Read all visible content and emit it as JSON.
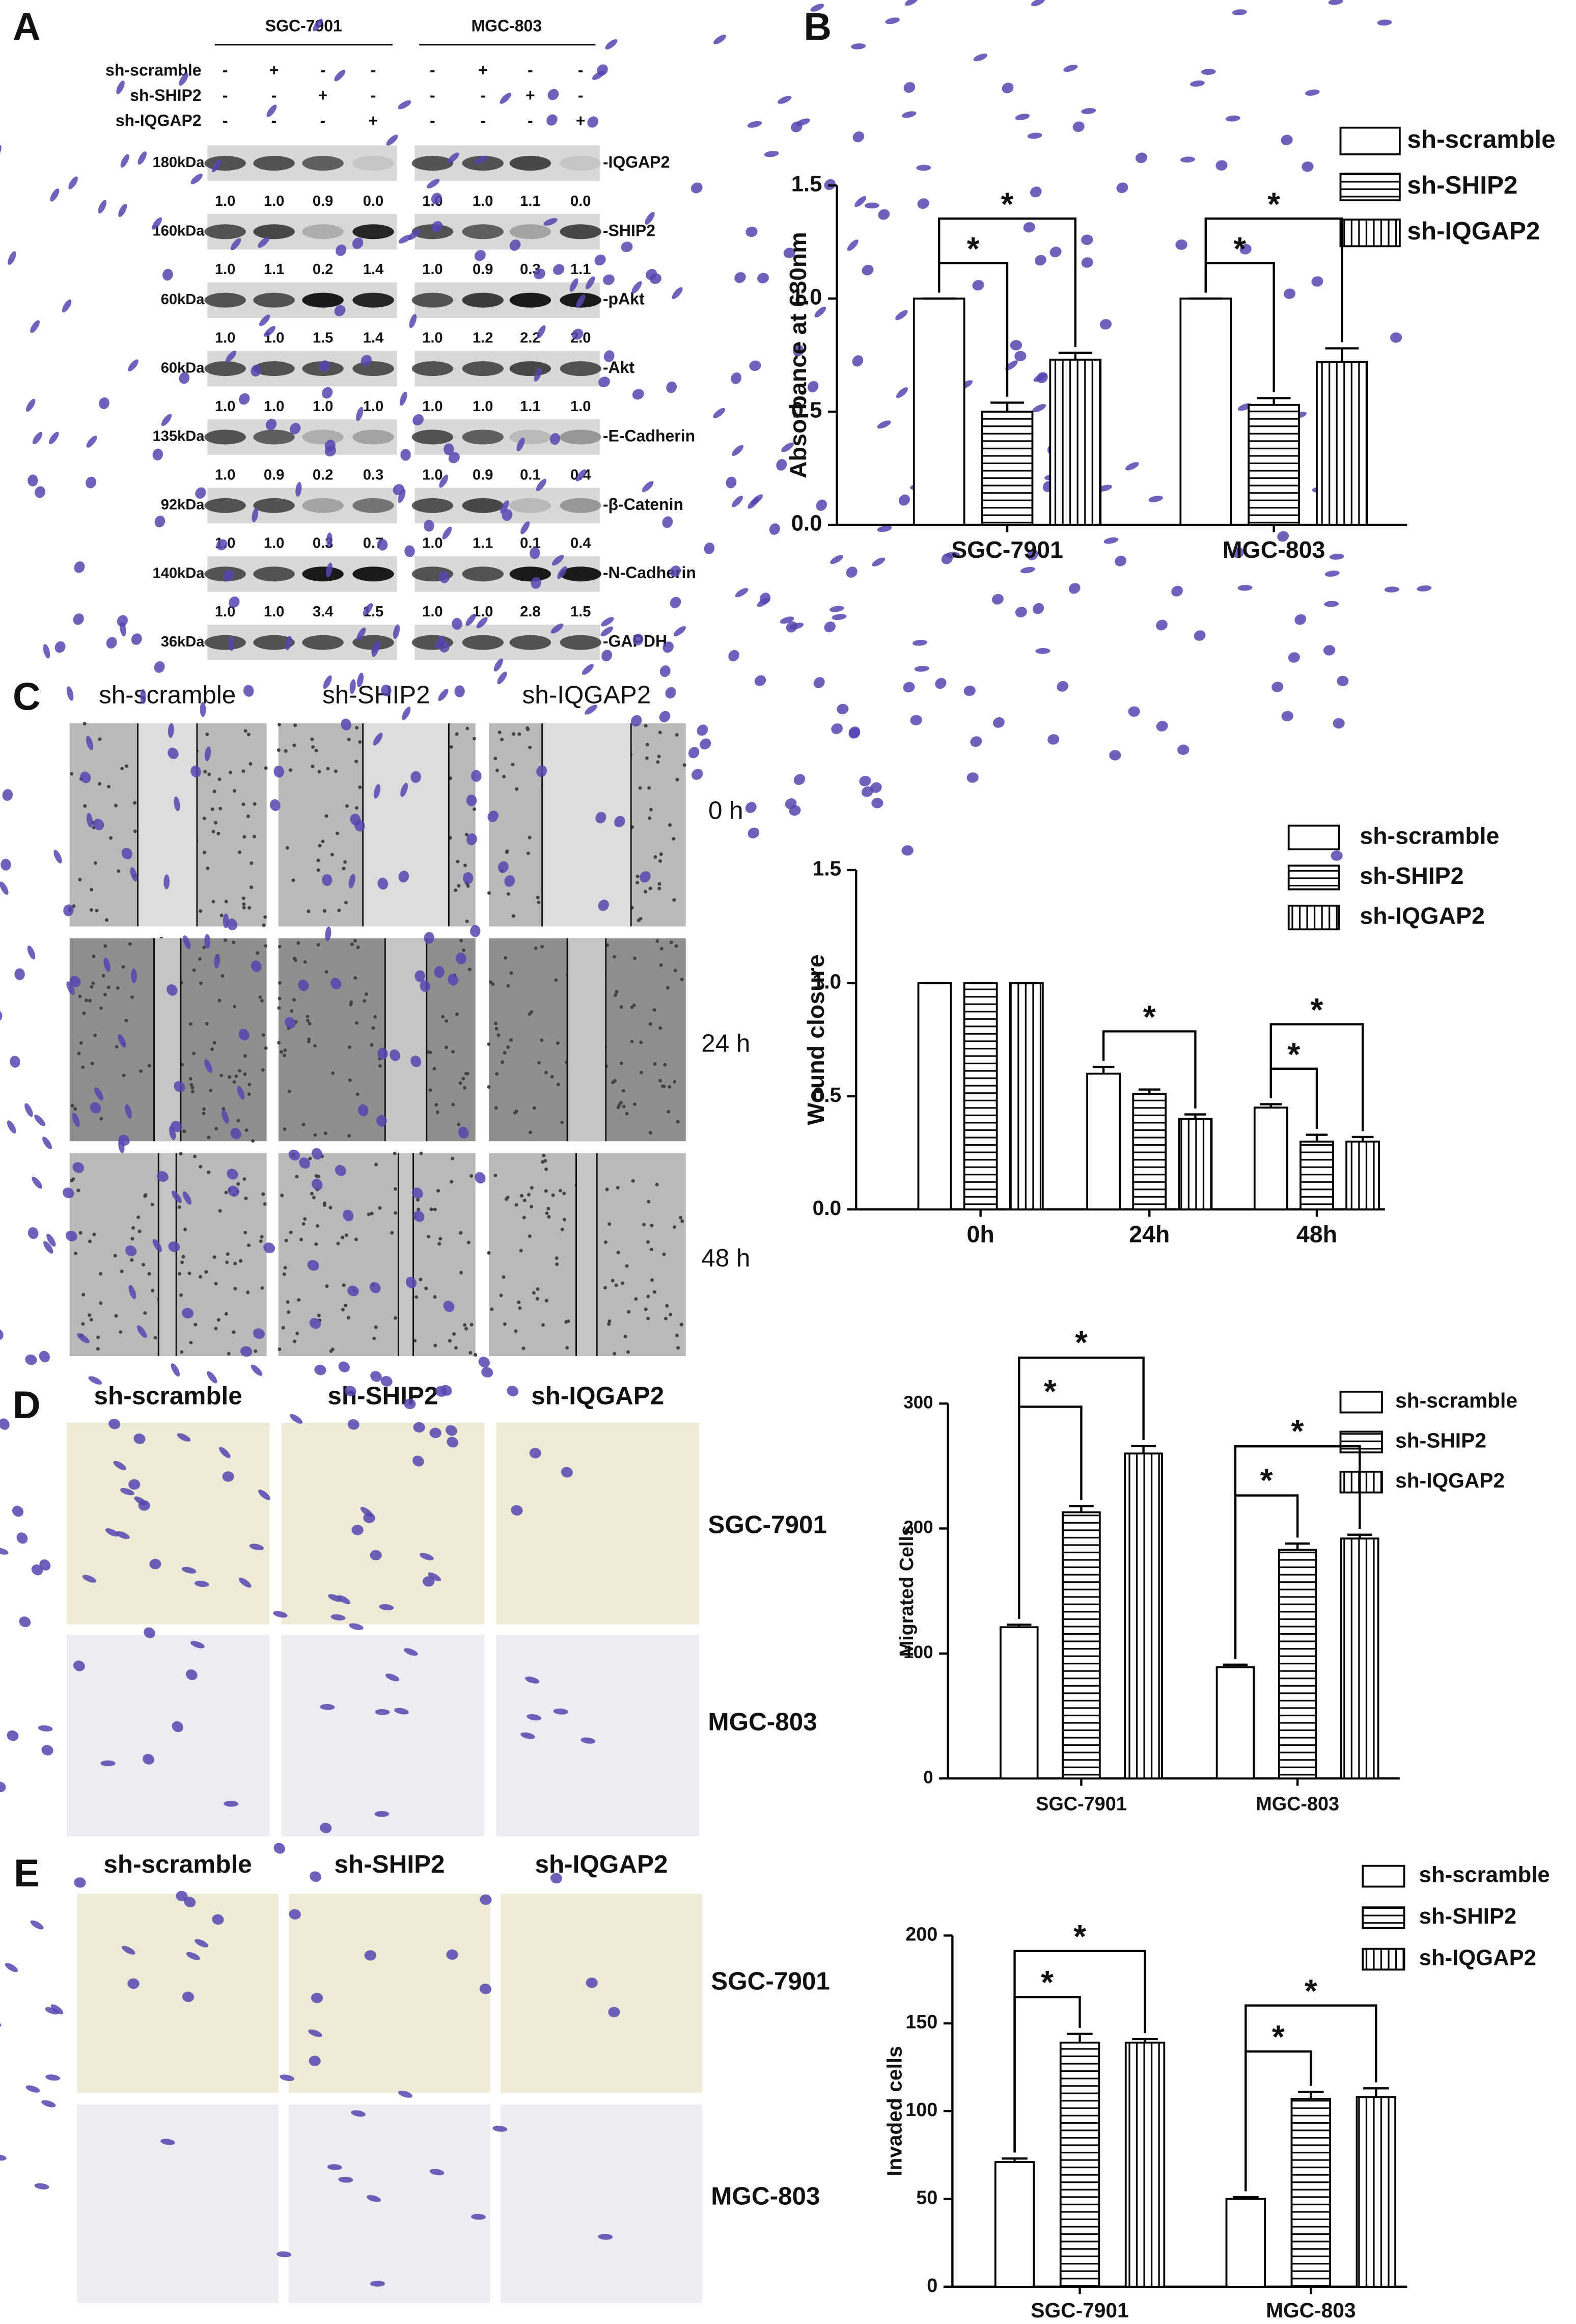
{
  "panel_labels": [
    "A",
    "B",
    "C",
    "D",
    "E"
  ],
  "western_blot": {
    "cell_lines": [
      "SGC-7901",
      "MGC-803"
    ],
    "conditions": [
      {
        "name": "sh-scramble",
        "lanes": [
          "-",
          "+",
          "-",
          "-",
          "-",
          "+",
          "-",
          "-"
        ]
      },
      {
        "name": "sh-SHIP2",
        "lanes": [
          "-",
          "-",
          "+",
          "-",
          "-",
          "-",
          "+",
          "-"
        ]
      },
      {
        "name": "sh-IQGAP2",
        "lanes": [
          "-",
          "-",
          "-",
          "+",
          "-",
          "-",
          "-",
          "+"
        ]
      }
    ],
    "proteins": [
      {
        "size": "180kDa",
        "name": "-IQGAP2",
        "quant": [
          "1.0",
          "1.0",
          "0.9",
          "0.0",
          "1.0",
          "1.0",
          "1.1",
          "0.0"
        ]
      },
      {
        "size": "160kDa",
        "name": "-SHIP2",
        "quant": [
          "1.0",
          "1.1",
          "0.2",
          "1.4",
          "1.0",
          "0.9",
          "0.3",
          "1.1"
        ]
      },
      {
        "size": "60kDa",
        "name": "-pAkt",
        "quant": [
          "1.0",
          "1.0",
          "1.5",
          "1.4",
          "1.0",
          "1.2",
          "2.2",
          "2.0"
        ]
      },
      {
        "size": "60kDa",
        "name": "-Akt",
        "quant": [
          "1.0",
          "1.0",
          "1.0",
          "1.0",
          "1.0",
          "1.0",
          "1.1",
          "1.0"
        ]
      },
      {
        "size": "135kDa",
        "name": "-E-Cadherin",
        "quant": [
          "1.0",
          "0.9",
          "0.2",
          "0.3",
          "1.0",
          "0.9",
          "0.1",
          "0.4"
        ]
      },
      {
        "size": "92kDa",
        "name": "-β-Catenin",
        "quant": [
          "1.0",
          "1.0",
          "0.3",
          "0.7",
          "1.0",
          "1.1",
          "0.1",
          "0.4"
        ]
      },
      {
        "size": "140kDa",
        "name": "-N-Cadherin",
        "quant": [
          "1.0",
          "1.0",
          "3.4",
          "1.5",
          "1.0",
          "1.0",
          "2.8",
          "1.5"
        ]
      },
      {
        "size": "36kDa",
        "name": "-GAPDH"
      }
    ]
  },
  "wound_images": {
    "columns": [
      "sh-scramble",
      "sh-SHIP2",
      "sh-IQGAP2"
    ],
    "times": [
      "0 h",
      "24 h",
      "48 h"
    ]
  },
  "migration_images": {
    "columns": [
      "sh-scramble",
      "sh-SHIP2",
      "sh-IQGAP2"
    ],
    "rows": [
      "SGC-7901",
      "MGC-803"
    ]
  },
  "invasion_images": {
    "columns": [
      "sh-scramble",
      "sh-SHIP2",
      "sh-IQGAP2"
    ],
    "rows": [
      "SGC-7901",
      "MGC-803"
    ]
  },
  "chart_data": [
    {
      "type": "bar",
      "y_label": "Absorbance at 630nm",
      "categories": [
        "SGC-7901",
        "MGC-803"
      ],
      "series": [
        {
          "name": "sh-scramble",
          "color": "#000000",
          "fill": "none",
          "values": [
            1.0,
            1.0
          ],
          "errors": [
            0,
            0
          ]
        },
        {
          "name": "sh-SHIP2",
          "color": "#000000",
          "fill": "horizontal",
          "values": [
            0.5,
            0.53
          ],
          "errors": [
            0.04,
            0.03
          ]
        },
        {
          "name": "sh-IQGAP2",
          "color": "#000000",
          "fill": "vertical",
          "values": [
            0.73,
            0.72
          ],
          "errors": [
            0.03,
            0.06
          ]
        }
      ],
      "ylim": [
        0,
        1.5
      ],
      "yticks": [
        {
          "value": 0,
          "label": "0.0"
        },
        {
          "value": 0.5,
          "label": "0.5"
        },
        {
          "value": 1,
          "label": "1.0"
        },
        {
          "value": 1.5,
          "label": "1.5"
        }
      ],
      "legend": "top-right",
      "annotations": [
        {
          "label": "*",
          "category": "SGC-7901",
          "between": [
            "sh-scramble",
            "sh-SHIP2"
          ]
        },
        {
          "label": "*",
          "category": "SGC-7901",
          "between": [
            "sh-scramble",
            "sh-IQGAP2"
          ]
        },
        {
          "label": "*",
          "category": "MGC-803",
          "between": [
            "sh-scramble",
            "sh-SHIP2"
          ]
        },
        {
          "label": "*",
          "category": "MGC-803",
          "between": [
            "sh-scramble",
            "sh-IQGAP2"
          ]
        }
      ]
    },
    {
      "type": "bar",
      "y_label": "Wound closure",
      "categories": [
        "0h",
        "24h",
        "48h"
      ],
      "series": [
        {
          "name": "sh-scramble",
          "color": "#000000",
          "fill": "none",
          "values": [
            1.0,
            0.6,
            0.45
          ],
          "errors": [
            0,
            0.03,
            0.015
          ]
        },
        {
          "name": "sh-SHIP2",
          "color": "#000000",
          "fill": "horizontal",
          "values": [
            1.0,
            0.51,
            0.3
          ],
          "errors": [
            0,
            0.02,
            0.03
          ]
        },
        {
          "name": "sh-IQGAP2",
          "color": "#000000",
          "fill": "vertical",
          "values": [
            1.0,
            0.4,
            0.3
          ],
          "errors": [
            0,
            0.02,
            0.02
          ]
        }
      ],
      "ylim": [
        0,
        1.5
      ],
      "yticks": [
        {
          "value": 0,
          "label": "0.0"
        },
        {
          "value": 0.5,
          "label": "0.5"
        },
        {
          "value": 1,
          "label": "1.0"
        },
        {
          "value": 1.5,
          "label": "1.5"
        }
      ],
      "legend": "top-right",
      "annotations": [
        {
          "label": "*",
          "category": "24h",
          "between": [
            "sh-scramble",
            "sh-IQGAP2"
          ]
        },
        {
          "label": "*",
          "category": "48h",
          "between": [
            "sh-scramble",
            "sh-SHIP2"
          ]
        },
        {
          "label": "*",
          "category": "48h",
          "between": [
            "sh-scramble",
            "sh-IQGAP2"
          ]
        }
      ]
    },
    {
      "type": "bar",
      "y_label": "Migrated Cells",
      "categories": [
        "SGC-7901",
        "MGC-803"
      ],
      "series": [
        {
          "name": "sh-scramble",
          "color": "#000000",
          "fill": "none",
          "values": [
            121,
            89
          ],
          "errors": [
            2,
            2
          ]
        },
        {
          "name": "sh-SHIP2",
          "color": "#000000",
          "fill": "horizontal",
          "values": [
            213,
            183
          ],
          "errors": [
            5,
            5
          ]
        },
        {
          "name": "sh-IQGAP2",
          "color": "#000000",
          "fill": "vertical",
          "values": [
            260,
            192
          ],
          "errors": [
            6,
            3
          ]
        }
      ],
      "ylim": [
        0,
        300
      ],
      "yticks": [
        0,
        100,
        200,
        300
      ],
      "legend": "top-right",
      "annotations": [
        {
          "label": "*",
          "category": "SGC-7901",
          "between": [
            "sh-scramble",
            "sh-SHIP2"
          ]
        },
        {
          "label": "*",
          "category": "SGC-7901",
          "between": [
            "sh-scramble",
            "sh-IQGAP2"
          ]
        },
        {
          "label": "*",
          "category": "MGC-803",
          "between": [
            "sh-scramble",
            "sh-SHIP2"
          ]
        },
        {
          "label": "*",
          "category": "MGC-803",
          "between": [
            "sh-scramble",
            "sh-IQGAP2"
          ]
        }
      ]
    },
    {
      "type": "bar",
      "y_label": "Invaded cells",
      "categories": [
        "SGC-7901",
        "MGC-803"
      ],
      "series": [
        {
          "name": "sh-scramble",
          "color": "#000000",
          "fill": "none",
          "values": [
            71,
            50
          ],
          "errors": [
            2,
            1
          ]
        },
        {
          "name": "sh-SHIP2",
          "color": "#000000",
          "fill": "horizontal",
          "values": [
            139,
            107
          ],
          "errors": [
            5,
            4
          ]
        },
        {
          "name": "sh-IQGAP2",
          "color": "#000000",
          "fill": "vertical",
          "values": [
            139,
            108
          ],
          "errors": [
            2,
            5
          ]
        }
      ],
      "ylim": [
        0,
        200
      ],
      "yticks": [
        0,
        50,
        100,
        150,
        200
      ],
      "legend": "top-right",
      "annotations": [
        {
          "label": "*",
          "category": "SGC-7901",
          "between": [
            "sh-scramble",
            "sh-SHIP2"
          ]
        },
        {
          "label": "*",
          "category": "SGC-7901",
          "between": [
            "sh-scramble",
            "sh-IQGAP2"
          ]
        },
        {
          "label": "*",
          "category": "MGC-803",
          "between": [
            "sh-scramble",
            "sh-SHIP2"
          ]
        },
        {
          "label": "*",
          "category": "MGC-803",
          "between": [
            "sh-scramble",
            "sh-IQGAP2"
          ]
        }
      ]
    }
  ]
}
